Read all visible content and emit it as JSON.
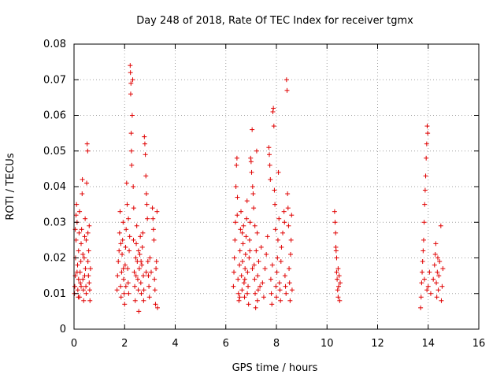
{
  "chart_data": {
    "type": "scatter",
    "title": "Day 248 of 2018, Rate Of TEC Index for receiver tgmx",
    "xlabel": "GPS time / hours",
    "ylabel": "ROTI / TECUs",
    "xlim": [
      0,
      16
    ],
    "ylim": [
      0,
      0.08
    ],
    "grid": true,
    "marker": "+",
    "marker_color": "#e00000",
    "xticks": [
      0,
      2,
      4,
      6,
      8,
      10,
      12,
      14,
      16
    ],
    "xtick_labels": [
      "0",
      "2",
      "4",
      "6",
      "8",
      "10",
      "12",
      "14",
      "16"
    ],
    "yticks": [
      0,
      0.01,
      0.02,
      0.03,
      0.04,
      0.05,
      0.06,
      0.07,
      0.08
    ],
    "ytick_labels": [
      "0",
      "0.01",
      "0.02",
      "0.03",
      "0.04",
      "0.05",
      "0.06",
      "0.07",
      "0.08"
    ],
    "series": [
      {
        "name": "ROTI",
        "points": [
          [
            0.02,
            0.01
          ],
          [
            0.03,
            0.012
          ],
          [
            0.05,
            0.015
          ],
          [
            0.06,
            0.02
          ],
          [
            0.08,
            0.025
          ],
          [
            0.1,
            0.035
          ],
          [
            0.12,
            0.03
          ],
          [
            0.14,
            0.018
          ],
          [
            0.15,
            0.011
          ],
          [
            0.17,
            0.009
          ],
          [
            0.18,
            0.022
          ],
          [
            0.2,
            0.027
          ],
          [
            0.22,
            0.033
          ],
          [
            0.24,
            0.016
          ],
          [
            0.25,
            0.013
          ],
          [
            0.27,
            0.019
          ],
          [
            0.28,
            0.024
          ],
          [
            0.3,
            0.028
          ],
          [
            0.32,
            0.038
          ],
          [
            0.33,
            0.042
          ],
          [
            0.35,
            0.014
          ],
          [
            0.37,
            0.011
          ],
          [
            0.38,
            0.008
          ],
          [
            0.4,
            0.02
          ],
          [
            0.42,
            0.026
          ],
          [
            0.44,
            0.031
          ],
          [
            0.45,
            0.017
          ],
          [
            0.47,
            0.012
          ],
          [
            0.48,
            0.01
          ],
          [
            0.5,
            0.041
          ],
          [
            0.52,
            0.052
          ],
          [
            0.54,
            0.05
          ],
          [
            0.55,
            0.019
          ],
          [
            0.57,
            0.015
          ],
          [
            0.58,
            0.022
          ],
          [
            0.6,
            0.029
          ],
          [
            0.62,
            0.011
          ],
          [
            0.63,
            0.008
          ],
          [
            0.65,
            0.017
          ],
          [
            0.05,
            0.028
          ],
          [
            0.08,
            0.032
          ],
          [
            0.12,
            0.016
          ],
          [
            0.18,
            0.014
          ],
          [
            0.22,
            0.009
          ],
          [
            0.28,
            0.012
          ],
          [
            0.35,
            0.021
          ],
          [
            0.42,
            0.015
          ],
          [
            0.48,
            0.025
          ],
          [
            0.55,
            0.027
          ],
          [
            0.6,
            0.013
          ],
          [
            1.7,
            0.011
          ],
          [
            1.72,
            0.015
          ],
          [
            1.75,
            0.019
          ],
          [
            1.78,
            0.022
          ],
          [
            1.8,
            0.027
          ],
          [
            1.82,
            0.033
          ],
          [
            1.84,
            0.012
          ],
          [
            1.86,
            0.009
          ],
          [
            1.88,
            0.016
          ],
          [
            1.9,
            0.021
          ],
          [
            1.92,
            0.025
          ],
          [
            1.94,
            0.03
          ],
          [
            1.96,
            0.014
          ],
          [
            1.98,
            0.01
          ],
          [
            2.0,
            0.007
          ],
          [
            2.02,
            0.018
          ],
          [
            2.04,
            0.023
          ],
          [
            2.06,
            0.028
          ],
          [
            2.08,
            0.041
          ],
          [
            2.1,
            0.035
          ],
          [
            2.12,
            0.017
          ],
          [
            2.14,
            0.013
          ],
          [
            2.16,
            0.01
          ],
          [
            2.18,
            0.022
          ],
          [
            2.2,
            0.026
          ],
          [
            2.22,
            0.074
          ],
          [
            2.23,
            0.072
          ],
          [
            2.24,
            0.066
          ],
          [
            2.25,
            0.069
          ],
          [
            2.26,
            0.055
          ],
          [
            2.27,
            0.05
          ],
          [
            2.28,
            0.046
          ],
          [
            2.3,
            0.06
          ],
          [
            2.32,
            0.07
          ],
          [
            2.34,
            0.04
          ],
          [
            2.36,
            0.034
          ],
          [
            2.38,
            0.016
          ],
          [
            2.4,
            0.012
          ],
          [
            2.42,
            0.008
          ],
          [
            2.44,
            0.02
          ],
          [
            2.46,
            0.024
          ],
          [
            2.48,
            0.029
          ],
          [
            2.5,
            0.019
          ],
          [
            2.52,
            0.014
          ],
          [
            2.54,
            0.011
          ],
          [
            2.56,
            0.005
          ],
          [
            2.58,
            0.017
          ],
          [
            2.6,
            0.021
          ],
          [
            2.62,
            0.026
          ],
          [
            2.64,
            0.013
          ],
          [
            2.66,
            0.01
          ],
          [
            2.68,
            0.018
          ],
          [
            2.7,
            0.023
          ],
          [
            2.72,
            0.027
          ],
          [
            2.74,
            0.015
          ],
          [
            2.76,
            0.011
          ],
          [
            2.78,
            0.054
          ],
          [
            2.8,
            0.052
          ],
          [
            2.82,
            0.049
          ],
          [
            2.84,
            0.043
          ],
          [
            2.86,
            0.038
          ],
          [
            2.88,
            0.035
          ],
          [
            2.9,
            0.031
          ],
          [
            2.92,
            0.019
          ],
          [
            2.94,
            0.015
          ],
          [
            2.96,
            0.012
          ],
          [
            2.98,
            0.009
          ],
          [
            3.0,
            0.02
          ],
          [
            3.05,
            0.016
          ],
          [
            3.1,
            0.034
          ],
          [
            3.12,
            0.031
          ],
          [
            3.14,
            0.028
          ],
          [
            3.16,
            0.025
          ],
          [
            3.18,
            0.014
          ],
          [
            3.2,
            0.011
          ],
          [
            3.22,
            0.007
          ],
          [
            3.24,
            0.017
          ],
          [
            3.26,
            0.019
          ],
          [
            3.28,
            0.033
          ],
          [
            3.3,
            0.006
          ],
          [
            1.85,
            0.024
          ],
          [
            1.95,
            0.017
          ],
          [
            2.05,
            0.012
          ],
          [
            2.15,
            0.031
          ],
          [
            2.35,
            0.025
          ],
          [
            2.45,
            0.015
          ],
          [
            2.55,
            0.022
          ],
          [
            2.65,
            0.019
          ],
          [
            2.75,
            0.008
          ],
          [
            2.85,
            0.016
          ],
          [
            6.3,
            0.012
          ],
          [
            6.32,
            0.016
          ],
          [
            6.34,
            0.02
          ],
          [
            6.36,
            0.025
          ],
          [
            6.38,
            0.03
          ],
          [
            6.4,
            0.04
          ],
          [
            6.42,
            0.046
          ],
          [
            6.44,
            0.048
          ],
          [
            6.46,
            0.037
          ],
          [
            6.48,
            0.014
          ],
          [
            6.5,
            0.01
          ],
          [
            6.52,
            0.008
          ],
          [
            6.54,
            0.018
          ],
          [
            6.56,
            0.022
          ],
          [
            6.58,
            0.028
          ],
          [
            6.6,
            0.033
          ],
          [
            6.62,
            0.015
          ],
          [
            6.64,
            0.011
          ],
          [
            6.66,
            0.019
          ],
          [
            6.68,
            0.024
          ],
          [
            6.7,
            0.029
          ],
          [
            6.72,
            0.013
          ],
          [
            6.74,
            0.009
          ],
          [
            6.76,
            0.017
          ],
          [
            6.78,
            0.021
          ],
          [
            6.8,
            0.026
          ],
          [
            6.82,
            0.031
          ],
          [
            6.84,
            0.036
          ],
          [
            6.86,
            0.016
          ],
          [
            6.88,
            0.012
          ],
          [
            6.9,
            0.007
          ],
          [
            6.92,
            0.02
          ],
          [
            6.94,
            0.025
          ],
          [
            6.96,
            0.03
          ],
          [
            6.98,
            0.048
          ],
          [
            7.0,
            0.047
          ],
          [
            7.02,
            0.044
          ],
          [
            7.04,
            0.056
          ],
          [
            7.06,
            0.04
          ],
          [
            7.08,
            0.038
          ],
          [
            7.1,
            0.034
          ],
          [
            7.12,
            0.018
          ],
          [
            7.14,
            0.014
          ],
          [
            7.16,
            0.01
          ],
          [
            7.18,
            0.006
          ],
          [
            7.2,
            0.022
          ],
          [
            7.22,
            0.05
          ],
          [
            7.24,
            0.027
          ],
          [
            7.26,
            0.015
          ],
          [
            7.28,
            0.011
          ],
          [
            7.3,
            0.019
          ],
          [
            7.4,
            0.023
          ],
          [
            7.45,
            0.013
          ],
          [
            7.5,
            0.009
          ],
          [
            7.55,
            0.017
          ],
          [
            7.6,
            0.021
          ],
          [
            7.65,
            0.026
          ],
          [
            7.7,
            0.051
          ],
          [
            7.72,
            0.049
          ],
          [
            7.74,
            0.046
          ],
          [
            7.76,
            0.042
          ],
          [
            7.78,
            0.014
          ],
          [
            7.8,
            0.01
          ],
          [
            7.82,
            0.007
          ],
          [
            7.84,
            0.018
          ],
          [
            7.86,
            0.061
          ],
          [
            7.88,
            0.062
          ],
          [
            7.9,
            0.057
          ],
          [
            7.92,
            0.039
          ],
          [
            7.94,
            0.035
          ],
          [
            7.96,
            0.028
          ],
          [
            7.98,
            0.012
          ],
          [
            8.0,
            0.009
          ],
          [
            8.02,
            0.016
          ],
          [
            8.04,
            0.02
          ],
          [
            8.06,
            0.025
          ],
          [
            8.08,
            0.044
          ],
          [
            8.1,
            0.031
          ],
          [
            8.12,
            0.013
          ],
          [
            8.14,
            0.011
          ],
          [
            8.16,
            0.008
          ],
          [
            8.18,
            0.019
          ],
          [
            8.2,
            0.023
          ],
          [
            8.25,
            0.027
          ],
          [
            8.3,
            0.033
          ],
          [
            8.32,
            0.03
          ],
          [
            8.34,
            0.015
          ],
          [
            8.36,
            0.012
          ],
          [
            8.38,
            0.01
          ],
          [
            8.4,
            0.07
          ],
          [
            8.42,
            0.067
          ],
          [
            8.44,
            0.038
          ],
          [
            8.46,
            0.034
          ],
          [
            8.48,
            0.029
          ],
          [
            8.5,
            0.017
          ],
          [
            8.52,
            0.013
          ],
          [
            8.54,
            0.008
          ],
          [
            8.56,
            0.021
          ],
          [
            8.58,
            0.025
          ],
          [
            8.6,
            0.032
          ],
          [
            8.62,
            0.011
          ],
          [
            6.45,
            0.032
          ],
          [
            6.55,
            0.009
          ],
          [
            6.65,
            0.027
          ],
          [
            6.75,
            0.014
          ],
          [
            6.85,
            0.01
          ],
          [
            6.95,
            0.022
          ],
          [
            7.05,
            0.017
          ],
          [
            7.15,
            0.029
          ],
          [
            7.25,
            0.008
          ],
          [
            7.35,
            0.012
          ],
          [
            10.3,
            0.033
          ],
          [
            10.32,
            0.03
          ],
          [
            10.34,
            0.027
          ],
          [
            10.35,
            0.023
          ],
          [
            10.36,
            0.022
          ],
          [
            10.38,
            0.016
          ],
          [
            10.4,
            0.014
          ],
          [
            10.42,
            0.011
          ],
          [
            10.44,
            0.009
          ],
          [
            10.46,
            0.012
          ],
          [
            10.48,
            0.015
          ],
          [
            10.5,
            0.008
          ],
          [
            10.52,
            0.013
          ],
          [
            10.38,
            0.02
          ],
          [
            10.44,
            0.017
          ],
          [
            13.7,
            0.006
          ],
          [
            13.72,
            0.009
          ],
          [
            13.74,
            0.013
          ],
          [
            13.76,
            0.016
          ],
          [
            13.78,
            0.019
          ],
          [
            13.8,
            0.022
          ],
          [
            13.82,
            0.025
          ],
          [
            13.84,
            0.03
          ],
          [
            13.86,
            0.035
          ],
          [
            13.88,
            0.039
          ],
          [
            13.9,
            0.043
          ],
          [
            13.92,
            0.048
          ],
          [
            13.94,
            0.052
          ],
          [
            13.96,
            0.057
          ],
          [
            13.98,
            0.055
          ],
          [
            14.0,
            0.012
          ],
          [
            14.05,
            0.016
          ],
          [
            14.1,
            0.01
          ],
          [
            14.2,
            0.014
          ],
          [
            14.25,
            0.018
          ],
          [
            14.28,
            0.021
          ],
          [
            14.3,
            0.024
          ],
          [
            14.32,
            0.013
          ],
          [
            14.34,
            0.009
          ],
          [
            14.36,
            0.016
          ],
          [
            14.38,
            0.02
          ],
          [
            14.4,
            0.011
          ],
          [
            14.42,
            0.015
          ],
          [
            14.45,
            0.019
          ],
          [
            14.5,
            0.029
          ],
          [
            14.52,
            0.008
          ],
          [
            14.55,
            0.012
          ],
          [
            14.58,
            0.017
          ],
          [
            13.85,
            0.014
          ],
          [
            13.95,
            0.011
          ]
        ]
      }
    ]
  }
}
